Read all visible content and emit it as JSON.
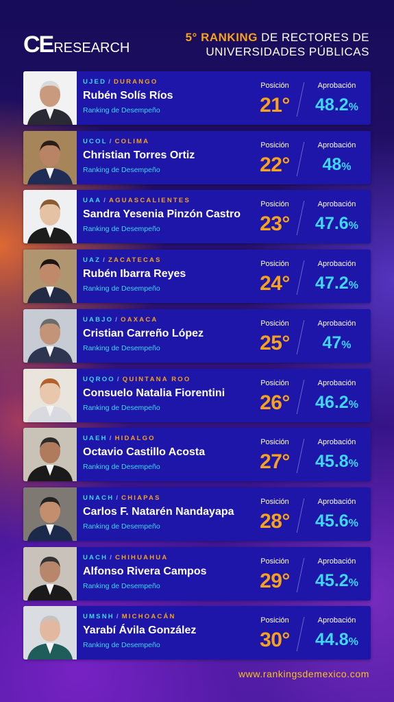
{
  "brand": {
    "ce": "CE",
    "research": "RESEARCH"
  },
  "title": {
    "prefix": "5°",
    "highlight": "RANKING",
    "rest1": "DE RECTORES DE",
    "line2": "UNIVERSIDADES PÚBLICAS"
  },
  "labels": {
    "position": "Posición",
    "approval": "Aprobación",
    "subtitle": "Ranking de Desempeño",
    "sep": "/",
    "pct": "%"
  },
  "colors": {
    "accent_orange": "#f7a21c",
    "accent_cyan": "#3fd7f5",
    "card_bg": "#1d16a8"
  },
  "rectors": [
    {
      "uni": "UJED",
      "state": "DURANGO",
      "name": "Rubén Solís Ríos",
      "position": "21°",
      "approval": "48.2"
    },
    {
      "uni": "UCOL",
      "state": "COLIMA",
      "name": "Christian Torres Ortiz",
      "position": "22°",
      "approval": "48"
    },
    {
      "uni": "UAA",
      "state": "AGUASCALIENTES",
      "name": "Sandra Yesenia Pinzón Castro",
      "position": "23°",
      "approval": "47.6"
    },
    {
      "uni": "UAZ",
      "state": "ZACATECAS",
      "name": "Rubén Ibarra Reyes",
      "position": "24°",
      "approval": "47.2"
    },
    {
      "uni": "UABJO",
      "state": "OAXACA",
      "name": "Cristian Carreño López",
      "position": "25°",
      "approval": "47"
    },
    {
      "uni": "UQROO",
      "state": "QUINTANA ROO",
      "name": "Consuelo Natalia Fiorentini",
      "position": "26°",
      "approval": "46.2"
    },
    {
      "uni": "UAEH",
      "state": "HIDALGO",
      "name": "Octavio Castillo Acosta",
      "position": "27°",
      "approval": "45.8"
    },
    {
      "uni": "UNACH",
      "state": "CHIAPAS",
      "name": "Carlos F. Natarén Nandayapa",
      "position": "28°",
      "approval": "45.6"
    },
    {
      "uni": "UACH",
      "state": "CHIHUAHUA",
      "name": "Alfonso Rivera Campos",
      "position": "29°",
      "approval": "45.2"
    },
    {
      "uni": "UMSNH",
      "state": "MICHOACÁN",
      "name": "Yarabí Ávila González",
      "position": "30°",
      "approval": "44.8"
    }
  ],
  "footer": {
    "url": "www.rankingsdemexico.com"
  }
}
